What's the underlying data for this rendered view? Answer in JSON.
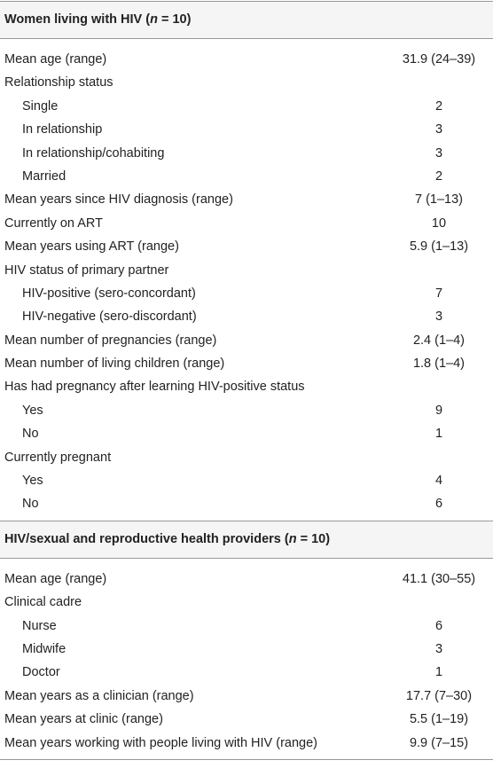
{
  "sections": [
    {
      "title": {
        "before": "Women living with HIV (",
        "italic": "n",
        "after": " = 10)"
      },
      "rows": [
        {
          "label": "Mean age (range)",
          "value": "31.9 (24–39)"
        },
        {
          "label": "Relationship status",
          "items": [
            {
              "label": "Single",
              "value": 2
            },
            {
              "label": "In relationship",
              "value": 3
            },
            {
              "label": "In relationship/cohabiting",
              "value": 3
            },
            {
              "label": "Married",
              "value": 2
            }
          ]
        },
        {
          "label": "Mean years since HIV diagnosis (range)",
          "value": "7 (1–13)"
        },
        {
          "label": "Currently on ART",
          "value": 10
        },
        {
          "label": "Mean years using ART (range)",
          "value": "5.9 (1–13)"
        },
        {
          "label": "HIV status of primary partner",
          "items": [
            {
              "label": "HIV-positive (sero-concordant)",
              "value": 7
            },
            {
              "label": "HIV-negative (sero-discordant)",
              "value": 3
            }
          ]
        },
        {
          "label": "Mean number of pregnancies (range)",
          "value": "2.4 (1–4)"
        },
        {
          "label": "Mean number of living children (range)",
          "value": "1.8 (1–4)"
        },
        {
          "label": "Has had pregnancy after learning HIV-positive status",
          "items": [
            {
              "label": "Yes",
              "value": 9
            },
            {
              "label": "No",
              "value": 1
            }
          ]
        },
        {
          "label": "Currently pregnant",
          "items": [
            {
              "label": "Yes",
              "value": 4
            },
            {
              "label": "No",
              "value": 6
            }
          ]
        }
      ]
    },
    {
      "title": {
        "before": "HIV/sexual and reproductive health providers (",
        "italic": "n",
        "after": " = 10)"
      },
      "rows": [
        {
          "label": "Mean age (range)",
          "value": "41.1 (30–55)"
        },
        {
          "label": "Clinical cadre",
          "items": [
            {
              "label": "Nurse",
              "value": 6
            },
            {
              "label": "Midwife",
              "value": 3
            },
            {
              "label": "Doctor",
              "value": 1
            }
          ]
        },
        {
          "label": "Mean years as a clinician (range)",
          "value": "17.7 (7–30)"
        },
        {
          "label": "Mean years at clinic (range)",
          "value": "5.5 (1–19)"
        },
        {
          "label": "Mean years working with people living with HIV (range)",
          "value": "9.9 (7–15)"
        }
      ]
    }
  ]
}
